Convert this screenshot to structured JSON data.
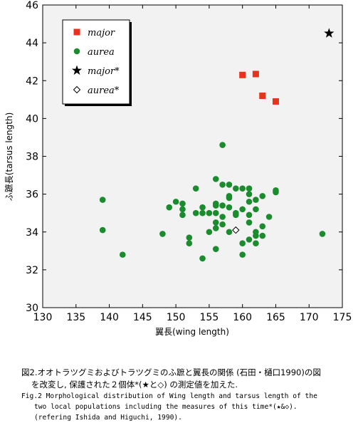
{
  "chart_data": {
    "type": "scatter",
    "xlabel": "翼長(wing length)",
    "ylabel": "ふ蹠長(tarsus length)",
    "xlim": [
      130,
      175
    ],
    "ylim": [
      30,
      46
    ],
    "xticks": [
      130,
      135,
      140,
      145,
      150,
      155,
      160,
      165,
      170,
      175
    ],
    "yticks": [
      30,
      32,
      34,
      36,
      38,
      40,
      42,
      44,
      46
    ],
    "grid": false,
    "legend_position": "top-left",
    "series": [
      {
        "name": "major",
        "marker": "square",
        "color": "#e8321e",
        "points": [
          [
            160,
            42.3
          ],
          [
            162,
            42.35
          ],
          [
            163,
            41.2
          ],
          [
            165,
            40.9
          ]
        ]
      },
      {
        "name": "aurea",
        "marker": "circle",
        "color": "#1a8c2e",
        "points": [
          [
            139,
            35.7
          ],
          [
            139,
            34.1
          ],
          [
            142,
            32.8
          ],
          [
            148,
            33.9
          ],
          [
            149,
            35.3
          ],
          [
            150,
            35.6
          ],
          [
            151,
            35.5
          ],
          [
            151,
            35.2
          ],
          [
            151,
            34.9
          ],
          [
            152,
            33.7
          ],
          [
            152,
            33.4
          ],
          [
            153,
            36.3
          ],
          [
            153,
            35.0
          ],
          [
            154,
            35.3
          ],
          [
            154,
            35.0
          ],
          [
            154,
            32.6
          ],
          [
            155,
            35.0
          ],
          [
            155,
            34.0
          ],
          [
            156,
            36.8
          ],
          [
            156,
            35.5
          ],
          [
            156,
            35.4
          ],
          [
            156,
            35.0
          ],
          [
            156,
            34.5
          ],
          [
            156,
            34.2
          ],
          [
            156,
            33.1
          ],
          [
            157,
            38.6
          ],
          [
            157,
            36.5
          ],
          [
            157,
            35.4
          ],
          [
            157,
            34.8
          ],
          [
            157,
            34.4
          ],
          [
            158,
            36.5
          ],
          [
            158,
            35.9
          ],
          [
            158,
            35.8
          ],
          [
            158,
            35.3
          ],
          [
            158,
            34.0
          ],
          [
            159,
            36.3
          ],
          [
            159,
            35.0
          ],
          [
            159,
            34.9
          ],
          [
            160,
            36.3
          ],
          [
            160,
            35.2
          ],
          [
            160,
            33.4
          ],
          [
            160,
            32.8
          ],
          [
            161,
            36.3
          ],
          [
            161,
            36.0
          ],
          [
            161,
            35.6
          ],
          [
            161,
            34.9
          ],
          [
            161,
            34.5
          ],
          [
            161,
            33.6
          ],
          [
            162,
            35.7
          ],
          [
            162,
            35.2
          ],
          [
            162,
            34.0
          ],
          [
            162,
            33.8
          ],
          [
            162,
            33.4
          ],
          [
            163,
            35.9
          ],
          [
            163,
            34.3
          ],
          [
            163,
            33.8
          ],
          [
            164,
            34.8
          ],
          [
            165,
            36.2
          ],
          [
            165,
            36.1
          ],
          [
            172,
            33.9
          ]
        ]
      },
      {
        "name": "major*",
        "marker": "star",
        "color": "#000000",
        "points": [
          [
            173,
            44.5
          ]
        ]
      },
      {
        "name": "aurea*",
        "marker": "diamond",
        "color": "#000000",
        "points": [
          [
            159,
            34.1
          ]
        ]
      }
    ]
  },
  "caption": {
    "ja_line1": "図2.オオトラツグミおよびトラツグミのふ蹠と翼長の関係 (石田・樋口1990)の図",
    "ja_line2": "を改変し, 保護された２個体*(★と◇) の測定値を加えた.",
    "en_line1": "Fig.2 Morphological distribution of Wing length and tarsus length of the",
    "en_line2": "two local populations including the measures of this time*(★&◇).",
    "en_line3": "(refering Ishida and Higuchi, 1990)."
  }
}
